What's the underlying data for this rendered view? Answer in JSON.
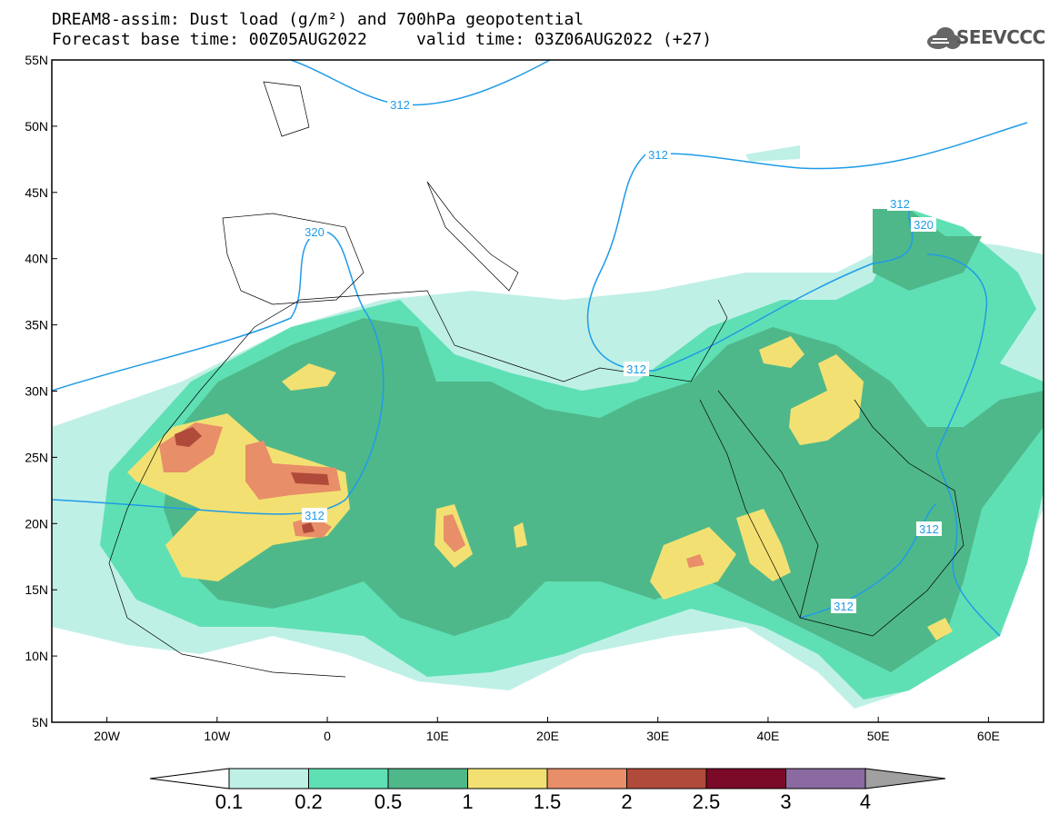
{
  "header": {
    "title_line1": "DREAM8-assim: Dust load (g/m²) and 700hPa geopotential",
    "title_line2": "Forecast base time: 00Z05AUG2022     valid time: 03Z06AUG2022 (+27)",
    "logo_text": "SEEVCCC"
  },
  "map": {
    "lon_range": [
      -25,
      65
    ],
    "lat_range": [
      5,
      55
    ],
    "lon_ticks": [
      "20W",
      "10W",
      "0",
      "10E",
      "20E",
      "30E",
      "40E",
      "50E",
      "60E"
    ],
    "lat_ticks": [
      "55N",
      "50N",
      "45N",
      "40N",
      "35N",
      "30N",
      "25N",
      "20N",
      "15N",
      "10N",
      "5N"
    ],
    "contour_labels": [
      "312",
      "312",
      "312",
      "320",
      "320",
      "312",
      "312",
      "312",
      "312"
    ]
  },
  "colorbar": {
    "levels": [
      "0.1",
      "0.2",
      "0.5",
      "1",
      "1.5",
      "2",
      "2.5",
      "3",
      "4"
    ],
    "colors": [
      "#bff0e6",
      "#5fe0b4",
      "#4fb88a",
      "#f2e172",
      "#e88e68",
      "#b04a3a",
      "#7a0a28",
      "#8a6aa0"
    ],
    "under_color": "#ffffff",
    "over_color": "#a0a0a0"
  }
}
